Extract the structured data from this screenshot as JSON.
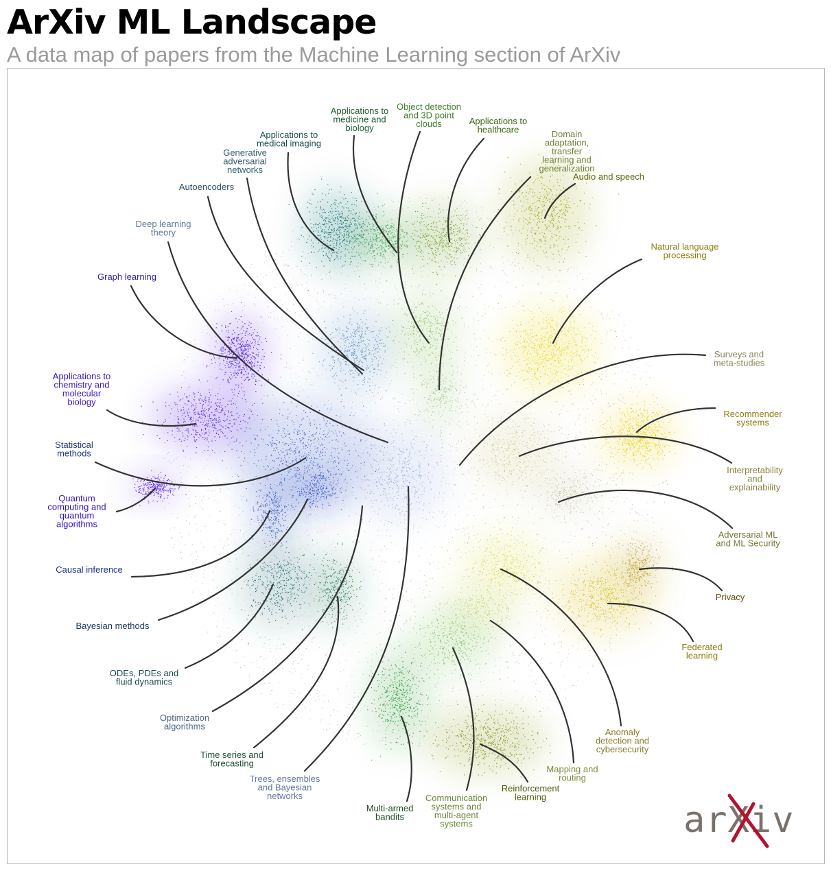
{
  "header": {
    "title": "ArXiv ML Landscape",
    "subtitle": "A data map of papers from the Machine Learning section of ArXiv"
  },
  "logo": {
    "text": "arXiv",
    "colors": {
      "text": "#7a726a",
      "x": "#b3132f"
    }
  },
  "colors": {
    "leader": "#333333",
    "background_points": "#8f8f8f"
  },
  "topics": [
    {
      "id": "medicine-biology",
      "lines": [
        "Applications to",
        "medicine and",
        "biology"
      ],
      "color": "#1f5a2e"
    },
    {
      "id": "object-detection",
      "lines": [
        "Object detection",
        "and 3D point",
        "clouds"
      ],
      "color": "#3f7d2a"
    },
    {
      "id": "healthcare",
      "lines": [
        "Applications to",
        "healthcare"
      ],
      "color": "#3d6312"
    },
    {
      "id": "medical-imaging",
      "lines": [
        "Applications to",
        "medical imaging"
      ],
      "color": "#1b4f4f"
    },
    {
      "id": "gan",
      "lines": [
        "Generative",
        "adversarial",
        "networks"
      ],
      "color": "#355e6a"
    },
    {
      "id": "domain-adaptation",
      "lines": [
        "Domain",
        "adaptation,",
        "transfer",
        "learning and",
        "generalization"
      ],
      "color": "#6f7f3a"
    },
    {
      "id": "audio-speech",
      "lines": [
        "Audio and speech"
      ],
      "color": "#5c6a0e"
    },
    {
      "id": "autoencoders",
      "lines": [
        "Autoencoders"
      ],
      "color": "#2b4f6e"
    },
    {
      "id": "dl-theory",
      "lines": [
        "Deep learning",
        "theory"
      ],
      "color": "#5f7796"
    },
    {
      "id": "nlp",
      "lines": [
        "Natural language",
        "processing"
      ],
      "color": "#8c8110"
    },
    {
      "id": "graph-learning",
      "lines": [
        "Graph learning"
      ],
      "color": "#2c1fa6"
    },
    {
      "id": "surveys",
      "lines": [
        "Surveys and",
        "meta-studies"
      ],
      "color": "#8a8456"
    },
    {
      "id": "chemistry",
      "lines": [
        "Applications to",
        "chemistry and",
        "molecular",
        "biology"
      ],
      "color": "#3a17c4"
    },
    {
      "id": "recommender",
      "lines": [
        "Recommender",
        "systems"
      ],
      "color": "#8a7d0e"
    },
    {
      "id": "statistical",
      "lines": [
        "Statistical",
        "methods"
      ],
      "color": "#243a78"
    },
    {
      "id": "interpretability",
      "lines": [
        "Interpretability",
        "and",
        "explainability"
      ],
      "color": "#8a8040"
    },
    {
      "id": "quantum",
      "lines": [
        "Quantum",
        "computing and",
        "quantum",
        "algorithms"
      ],
      "color": "#2d12bf"
    },
    {
      "id": "adversarial",
      "lines": [
        "Adversarial ML",
        "and ML Security"
      ],
      "color": "#7a7538"
    },
    {
      "id": "causal",
      "lines": [
        "Causal inference"
      ],
      "color": "#1f2f8a"
    },
    {
      "id": "privacy",
      "lines": [
        "Privacy"
      ],
      "color": "#5e4a08"
    },
    {
      "id": "bayesian",
      "lines": [
        "Bayesian methods"
      ],
      "color": "#183a63"
    },
    {
      "id": "federated",
      "lines": [
        "Federated",
        "learning"
      ],
      "color": "#8a7a0a"
    },
    {
      "id": "odes",
      "lines": [
        "ODEs, PDEs and",
        "fluid dynamics"
      ],
      "color": "#1e4a4e"
    },
    {
      "id": "anomaly",
      "lines": [
        "Anomaly",
        "detection and",
        "cybersecurity"
      ],
      "color": "#8a7a2a"
    },
    {
      "id": "optimization",
      "lines": [
        "Optimization",
        "algorithms"
      ],
      "color": "#4f6a84"
    },
    {
      "id": "mapping",
      "lines": [
        "Mapping and",
        "routing"
      ],
      "color": "#7f8a3a"
    },
    {
      "id": "time-series",
      "lines": [
        "Time series and",
        "forecasting"
      ],
      "color": "#1f4f35"
    },
    {
      "id": "rl",
      "lines": [
        "Reinforcement",
        "learning"
      ],
      "color": "#4d5c0a"
    },
    {
      "id": "trees",
      "lines": [
        "Trees, ensembles",
        "and Bayesian",
        "networks"
      ],
      "color": "#6678a0"
    },
    {
      "id": "comm-systems",
      "lines": [
        "Communication",
        "systems and",
        "multi-agent",
        "systems"
      ],
      "color": "#6a8a3a"
    },
    {
      "id": "bandits",
      "lines": [
        "Multi-armed",
        "bandits"
      ],
      "color": "#184a1a"
    }
  ]
}
